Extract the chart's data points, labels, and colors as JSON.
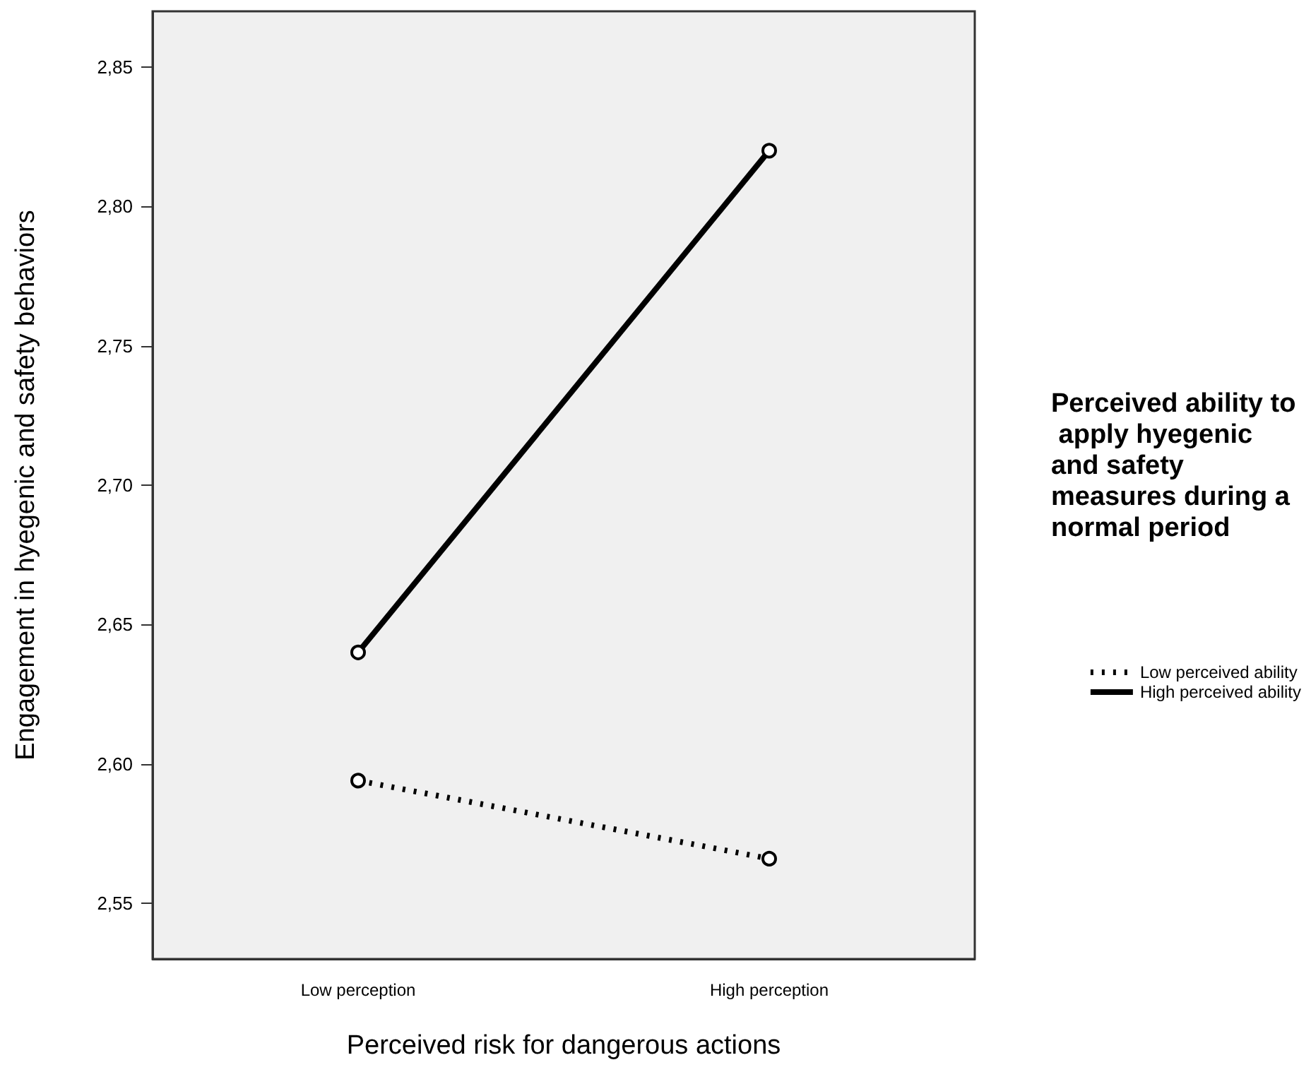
{
  "chart_data": {
    "type": "line",
    "xlabel": "Perceived risk for dangerous actions",
    "ylabel": "Engagement in hyegenic and safety behaviors",
    "legend_title": "Perceived ability to apply hyegenic and safety measures during a normal period",
    "categories": [
      "Low perception",
      "High perception"
    ],
    "series": [
      {
        "name": "Low perceived ability",
        "color": "#000000",
        "line_style": "dotted",
        "values": [
          2.594,
          2.566
        ]
      },
      {
        "name": "High perceived ability",
        "color": "#000000",
        "line_style": "solid",
        "values": [
          2.64,
          2.82
        ]
      }
    ],
    "ylim": [
      2.53,
      2.87
    ],
    "yticks": [
      {
        "value": 2.55,
        "label": "2,55"
      },
      {
        "value": 2.6,
        "label": "2,60"
      },
      {
        "value": 2.65,
        "label": "2,65"
      },
      {
        "value": 2.7,
        "label": "2,70"
      },
      {
        "value": 2.75,
        "label": "2,75"
      },
      {
        "value": 2.8,
        "label": "2,80"
      },
      {
        "value": 2.85,
        "label": "2,85"
      }
    ],
    "marker": "circle",
    "grid": false,
    "legend": "right"
  }
}
